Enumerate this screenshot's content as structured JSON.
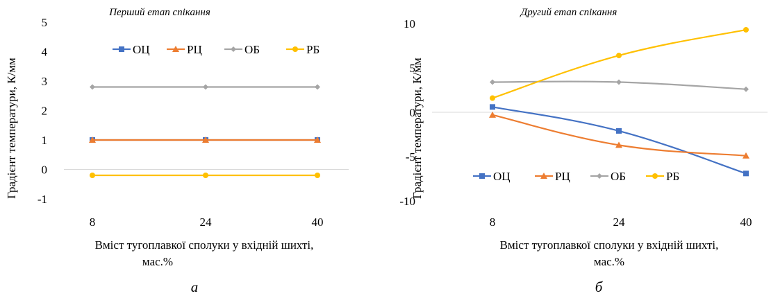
{
  "chart_data": [
    {
      "type": "line",
      "title": "Перший етап спікання",
      "xlabel": "Вміст тугоплавкої сполуки у вхідній шихті, мас.%",
      "ylabel": "Градієнт температури, К/мм",
      "categories": [
        "8",
        "24",
        "40"
      ],
      "ylim": [
        -1,
        5
      ],
      "yticks": [
        -1,
        0,
        1,
        2,
        3,
        4,
        5
      ],
      "grid": false,
      "legend_position": "top",
      "panel_letter": "а",
      "series": [
        {
          "name": "ОЦ",
          "values": [
            1.0,
            1.0,
            1.0
          ],
          "color": "#4472C4",
          "marker": "square"
        },
        {
          "name": "РЦ",
          "values": [
            1.0,
            1.0,
            1.0
          ],
          "color": "#ED7D31",
          "marker": "triangle"
        },
        {
          "name": "ОБ",
          "values": [
            2.8,
            2.8,
            2.8
          ],
          "color": "#A5A5A5",
          "marker": "diamond"
        },
        {
          "name": "РБ",
          "values": [
            -0.2,
            -0.2,
            -0.2
          ],
          "color": "#FFC000",
          "marker": "circle"
        }
      ]
    },
    {
      "type": "line",
      "title": "Другий етап спікання",
      "xlabel": "Вміст тугоплавкої сполуки у вхідній шихті, мас.%",
      "ylabel": "Градієнт температури, К/мм",
      "categories": [
        "8",
        "24",
        "40"
      ],
      "ylim": [
        -10,
        10
      ],
      "yticks": [
        -10,
        -5,
        0,
        5,
        10
      ],
      "grid": false,
      "legend_position": "bottom",
      "panel_letter": "б",
      "series": [
        {
          "name": "ОЦ",
          "values": [
            0.6,
            -2.1,
            -6.9
          ],
          "color": "#4472C4",
          "marker": "square"
        },
        {
          "name": "РЦ",
          "values": [
            -0.3,
            -3.7,
            -4.9
          ],
          "color": "#ED7D31",
          "marker": "triangle"
        },
        {
          "name": "ОБ",
          "values": [
            3.4,
            3.4,
            2.6
          ],
          "color": "#A5A5A5",
          "marker": "diamond"
        },
        {
          "name": "РБ",
          "values": [
            1.6,
            6.4,
            9.3
          ],
          "color": "#FFC000",
          "marker": "circle"
        }
      ]
    }
  ]
}
